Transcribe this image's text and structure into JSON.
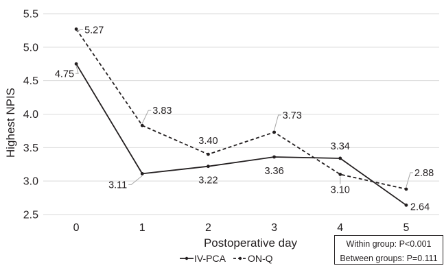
{
  "chart_data": {
    "type": "line",
    "xlabel": "Postoperative day",
    "ylabel": "Highest NPIS",
    "x": [
      0,
      1,
      2,
      3,
      4,
      5
    ],
    "ylim": [
      2.5,
      5.5
    ],
    "yticks": [
      2.5,
      3.0,
      3.5,
      4.0,
      4.5,
      5.0,
      5.5
    ],
    "ytick_labels": [
      "2.5",
      "3.0",
      "3.5",
      "4.0",
      "4.5",
      "5.0",
      "5.5"
    ],
    "grid": "horizontal",
    "legend_position": "bottom",
    "series": [
      {
        "name": "IV-PCA",
        "line_style": "solid",
        "color": "#231f20",
        "values": [
          4.75,
          3.11,
          3.22,
          3.36,
          3.34,
          2.64
        ],
        "labels": [
          "4.75",
          "3.11",
          "3.22",
          "3.36",
          "3.34",
          "2.64"
        ]
      },
      {
        "name": "ON-Q",
        "line_style": "dashed",
        "color": "#231f20",
        "values": [
          5.27,
          3.83,
          3.4,
          3.73,
          3.1,
          2.88
        ],
        "labels": [
          "5.27",
          "3.83",
          "3.40",
          "3.73",
          "3.10",
          "2.88"
        ]
      }
    ],
    "stats_box": [
      "Within group: P<0.001",
      "Between groups: P=0.111"
    ],
    "colors": {
      "grid": "#d9d9d9",
      "line": "#231f20",
      "text": "#231f20",
      "leader": "#a6a6a6"
    }
  }
}
